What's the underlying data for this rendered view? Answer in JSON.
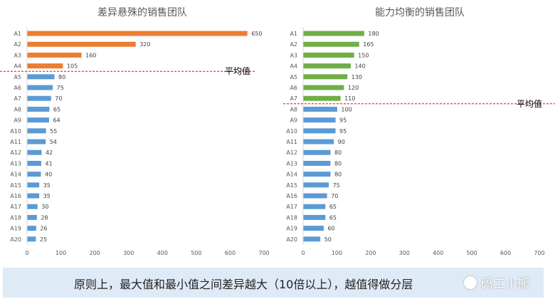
{
  "chart_data": [
    {
      "type": "bar",
      "orientation": "horizontal",
      "title": "差异悬殊的销售团队",
      "categories": [
        "A1",
        "A2",
        "A3",
        "A4",
        "A5",
        "A6",
        "A7",
        "A8",
        "A9",
        "A10",
        "A11",
        "A12",
        "A13",
        "A14",
        "A15",
        "A16",
        "A17",
        "A18",
        "A19",
        "A20"
      ],
      "values": [
        650,
        320,
        160,
        105,
        80,
        75,
        70,
        65,
        64,
        55,
        54,
        42,
        41,
        40,
        35,
        35,
        30,
        28,
        26,
        25
      ],
      "xlim": [
        0,
        700
      ],
      "xticks": [
        0,
        100,
        200,
        300,
        400,
        500,
        600,
        700
      ],
      "average": 100,
      "average_label": "平均值",
      "colors": {
        "above_average": "#ED7D31",
        "below_average": "#5B9BD5",
        "average_line": "#FF0000"
      },
      "grid": false
    },
    {
      "type": "bar",
      "orientation": "horizontal",
      "title": "能力均衡的销售团队",
      "categories": [
        "A1",
        "A2",
        "A3",
        "A4",
        "A5",
        "A6",
        "A7",
        "A8",
        "A9",
        "A10",
        "A11",
        "A12",
        "A13",
        "A14",
        "A15",
        "A16",
        "A17",
        "A18",
        "A19",
        "A20"
      ],
      "values": [
        180,
        165,
        150,
        140,
        130,
        120,
        110,
        100,
        95,
        95,
        90,
        80,
        80,
        80,
        75,
        70,
        65,
        65,
        60,
        50
      ],
      "xlim": [
        0,
        700
      ],
      "xticks": [
        0,
        100,
        200,
        300,
        400,
        500,
        600,
        700
      ],
      "average": 100,
      "average_label": "平均值",
      "colors": {
        "above_average": "#70AD47",
        "below_average": "#5B9BD5",
        "average_line": "#FF0000"
      },
      "grid": false
    }
  ],
  "footer": {
    "text": "原则上，最大值和最小值之间差异越大（10倍以上），越值得做分层",
    "watermark": "码工小熊"
  }
}
